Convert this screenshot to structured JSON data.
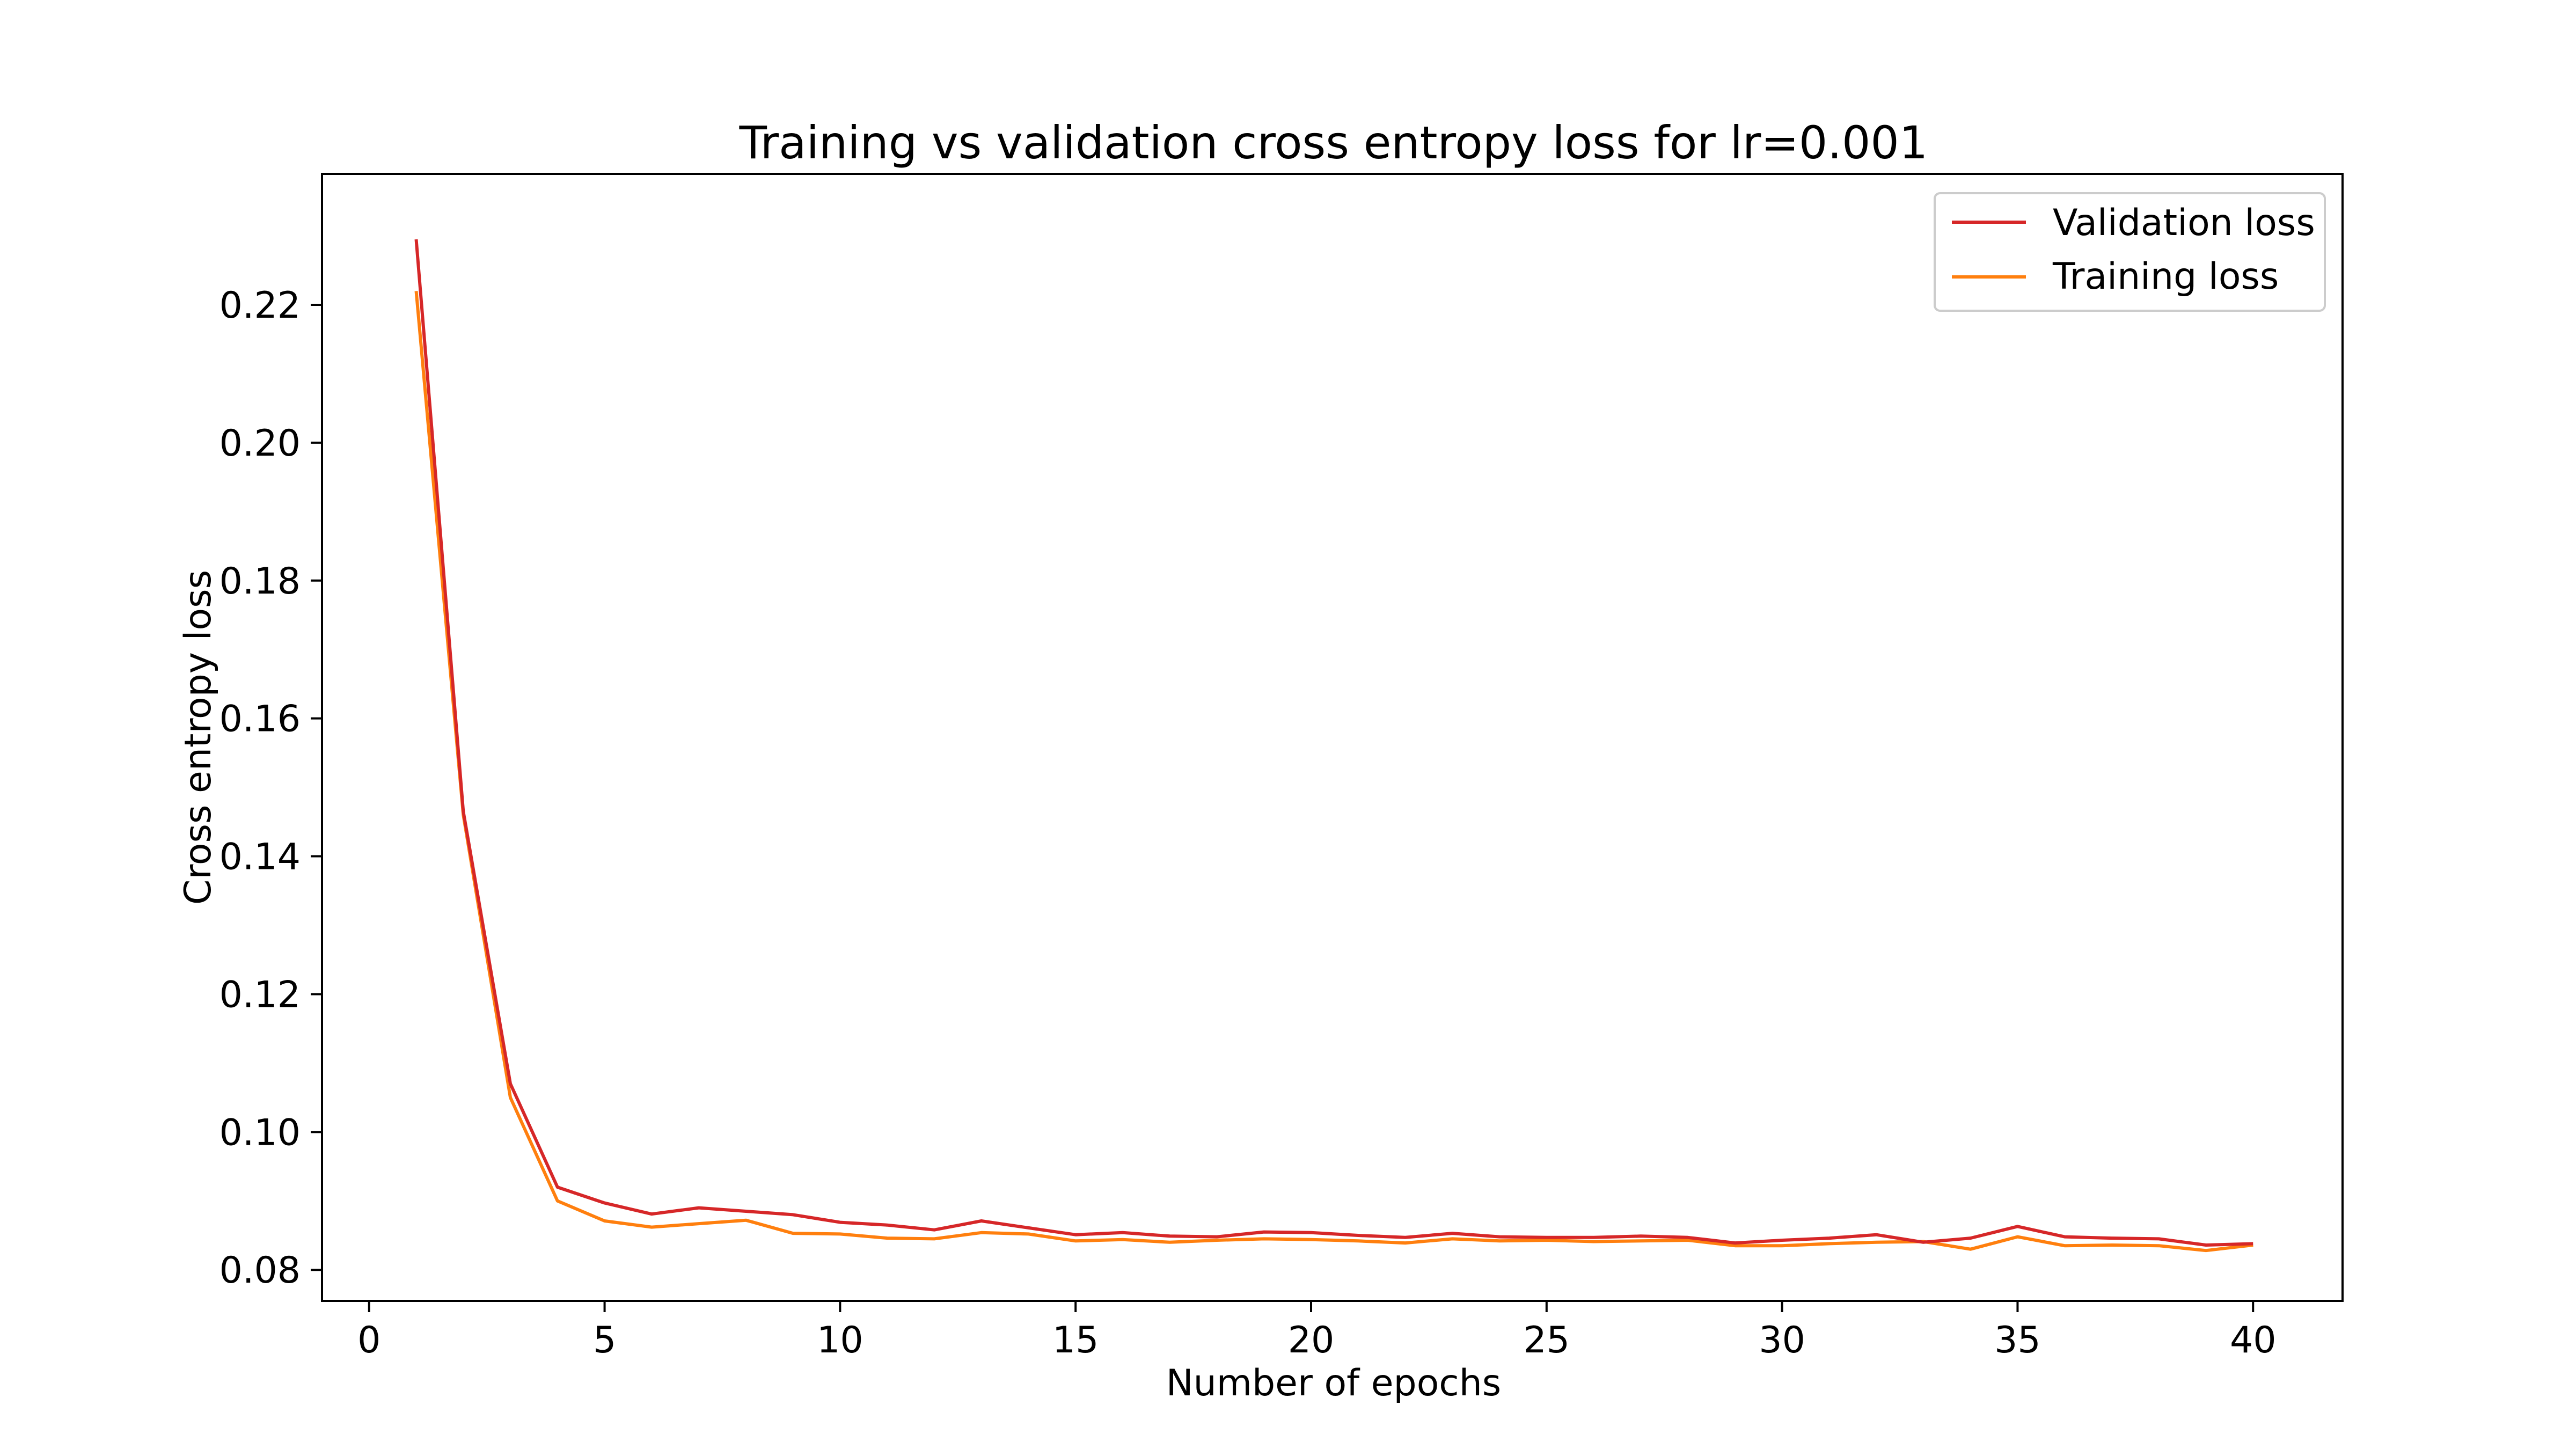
{
  "chart_data": {
    "type": "line",
    "title": "Training vs validation cross entropy loss for lr=0.001",
    "xlabel": "Number of epochs",
    "ylabel": "Cross entropy loss",
    "xlim": [
      -1.0,
      41.9
    ],
    "ylim": [
      0.0755,
      0.239
    ],
    "xticks": [
      0,
      5,
      10,
      15,
      20,
      25,
      30,
      35,
      40
    ],
    "xtick_labels": [
      "0",
      "5",
      "10",
      "15",
      "20",
      "25",
      "30",
      "35",
      "40"
    ],
    "yticks": [
      0.08,
      0.1,
      0.12,
      0.14,
      0.16,
      0.18,
      0.2,
      0.22
    ],
    "ytick_labels": [
      "0.08",
      "0.10",
      "0.12",
      "0.14",
      "0.16",
      "0.18",
      "0.20",
      "0.22"
    ],
    "grid": false,
    "legend_position": "top-right",
    "x": [
      1,
      2,
      3,
      4,
      5,
      6,
      7,
      8,
      9,
      10,
      11,
      12,
      13,
      14,
      15,
      16,
      17,
      18,
      19,
      20,
      21,
      22,
      23,
      24,
      25,
      26,
      27,
      28,
      29,
      30,
      31,
      32,
      33,
      34,
      35,
      36,
      37,
      38,
      39,
      40
    ],
    "series": [
      {
        "name": "Validation loss",
        "color": "#d62728",
        "values": [
          0.2295,
          0.1465,
          0.107,
          0.092,
          0.0897,
          0.0881,
          0.089,
          0.0885,
          0.088,
          0.0869,
          0.0865,
          0.0858,
          0.0871,
          0.0861,
          0.0851,
          0.0854,
          0.0849,
          0.0848,
          0.0855,
          0.0854,
          0.085,
          0.0847,
          0.0853,
          0.0848,
          0.0847,
          0.0847,
          0.0849,
          0.0847,
          0.0839,
          0.0843,
          0.0846,
          0.0851,
          0.084,
          0.0846,
          0.0863,
          0.0848,
          0.0846,
          0.0845,
          0.0836,
          0.0838
        ]
      },
      {
        "name": "Training loss",
        "color": "#ff7f0e",
        "values": [
          0.222,
          0.146,
          0.105,
          0.09,
          0.0871,
          0.0862,
          0.0867,
          0.0872,
          0.0853,
          0.0852,
          0.0846,
          0.0845,
          0.0854,
          0.0852,
          0.0842,
          0.0844,
          0.084,
          0.0843,
          0.0845,
          0.0844,
          0.0842,
          0.0839,
          0.0845,
          0.0842,
          0.0843,
          0.0841,
          0.0842,
          0.0843,
          0.0835,
          0.0835,
          0.0838,
          0.084,
          0.0841,
          0.083,
          0.0848,
          0.0835,
          0.0836,
          0.0835,
          0.0828,
          0.0836
        ]
      }
    ]
  }
}
